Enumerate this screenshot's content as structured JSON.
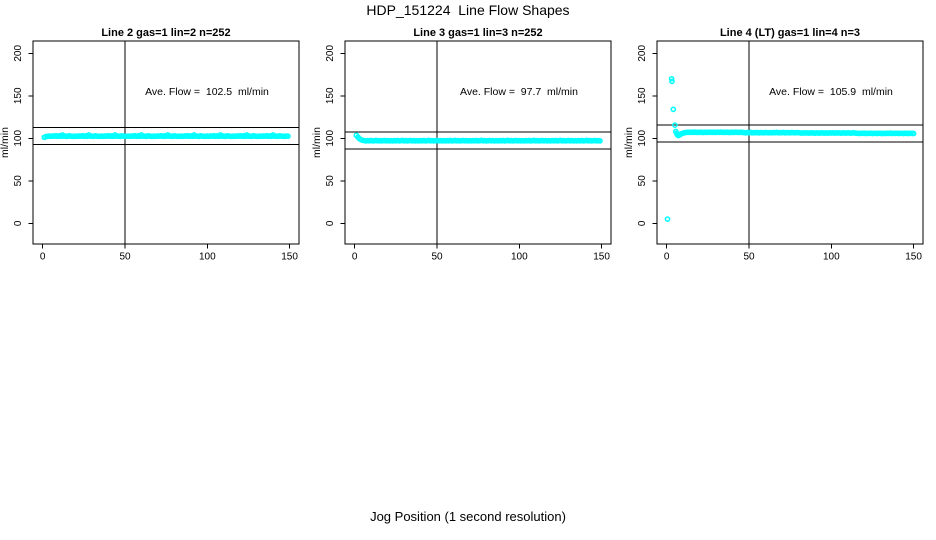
{
  "page": {
    "title": "HDP_151224  Line Flow Shapes",
    "xlabel": "Jog Position (1 second resolution)"
  },
  "chart_data": {
    "type": "scatter",
    "title": "HDP_151224  Line Flow Shapes",
    "xlabel": "Jog Position (1 second resolution)",
    "ylabel": "ml/min",
    "xlim": [
      0,
      150
    ],
    "ylim": [
      0,
      200
    ],
    "x_ticks": [
      0,
      50,
      100,
      150
    ],
    "y_ticks": [
      0,
      50,
      100,
      150,
      200
    ],
    "grid": false,
    "point_color": "#00ffff",
    "line_color": "#000000",
    "vline_x": 50,
    "panels": [
      {
        "title": "Line 2 gas=1 lin=2 n=252",
        "annotation": "Ave. Flow =  102.5  ml/min",
        "ave_flow": 102.5,
        "n": 252,
        "hlines": [
          92.5,
          112.5
        ],
        "series": {
          "x_start": 1,
          "x_step": 1,
          "y": [
            101.2,
            102.0,
            102.4,
            102.6,
            102.3,
            102.7,
            102.5,
            103.1,
            102.4,
            102.8,
            102.3,
            103.9,
            102.5,
            102.6,
            102.2,
            103.0,
            102.6,
            102.4,
            102.4,
            102.6,
            102.3,
            102.7,
            102.5,
            103.1,
            102.4,
            102.8,
            102.3,
            103.9,
            102.5,
            102.6,
            102.2,
            103.0,
            102.6,
            102.4,
            102.4,
            102.6,
            102.3,
            102.7,
            102.5,
            103.1,
            102.4,
            102.8,
            102.3,
            103.9,
            102.5,
            102.6,
            102.2,
            103.0,
            102.6,
            102.4,
            102.4,
            102.6,
            102.3,
            102.7,
            102.5,
            103.1,
            102.4,
            102.8,
            102.3,
            103.9,
            102.5,
            102.6,
            102.2,
            103.0,
            102.6,
            102.4,
            102.4,
            102.6,
            102.3,
            102.7,
            102.5,
            103.1,
            102.4,
            102.8,
            102.3,
            103.9,
            102.5,
            102.6,
            102.2,
            103.0,
            102.6,
            102.4,
            102.4,
            102.6,
            102.3,
            102.7,
            102.5,
            103.1,
            102.4,
            102.8,
            102.3,
            103.9,
            102.5,
            102.6,
            102.2,
            103.0,
            102.6,
            102.4,
            102.4,
            102.6,
            102.3,
            102.7,
            102.5,
            103.1,
            102.4,
            102.8,
            102.3,
            103.9,
            102.5,
            102.6,
            102.2,
            103.0,
            102.6,
            102.4,
            102.4,
            102.6,
            102.3,
            102.7,
            102.5,
            103.1,
            102.4,
            102.8,
            102.3,
            103.9,
            102.5,
            102.6,
            102.2,
            103.0,
            102.6,
            102.4,
            102.4,
            102.6,
            102.3,
            102.7,
            102.5,
            103.1,
            102.4,
            102.8,
            102.3,
            103.9,
            102.5,
            102.6,
            102.2,
            103.0,
            102.6,
            102.4,
            102.4,
            102.6,
            102.5
          ]
        },
        "extra_points": []
      },
      {
        "title": "Line 3 gas=1 lin=3 n=252",
        "annotation": "Ave. Flow =  97.7  ml/min",
        "ave_flow": 97.7,
        "n": 252,
        "hlines": [
          87.7,
          107.7
        ],
        "series": {
          "x_start": 1,
          "x_step": 1,
          "y": [
            103.5,
            101.3,
            99.4,
            98.2,
            97.7,
            97.2,
            97.0,
            97.3,
            97.1,
            97.4,
            97.0,
            97.2,
            97.5,
            97.1,
            97.3,
            96.9,
            97.2,
            97.4,
            97.1,
            97.3,
            97.0,
            97.2,
            97.0,
            97.3,
            97.1,
            97.4,
            97.0,
            97.2,
            97.5,
            97.1,
            97.3,
            96.9,
            97.2,
            97.4,
            97.1,
            97.3,
            97.0,
            97.2,
            97.0,
            97.3,
            97.1,
            97.4,
            97.0,
            97.2,
            97.5,
            97.1,
            97.3,
            96.9,
            97.2,
            97.4,
            97.1,
            97.3,
            97.0,
            97.2,
            97.0,
            97.3,
            97.1,
            97.4,
            97.0,
            97.2,
            97.5,
            97.1,
            97.3,
            96.9,
            97.2,
            97.4,
            97.1,
            97.3,
            97.0,
            97.2,
            97.0,
            97.3,
            97.1,
            97.4,
            97.0,
            97.2,
            97.5,
            97.1,
            97.3,
            96.9,
            97.2,
            97.4,
            97.1,
            97.3,
            97.0,
            97.2,
            97.0,
            97.3,
            97.1,
            97.4,
            97.0,
            97.2,
            97.5,
            97.1,
            97.3,
            96.9,
            97.2,
            97.4,
            97.1,
            97.3,
            97.0,
            97.2,
            97.0,
            97.3,
            97.1,
            97.4,
            97.0,
            97.2,
            97.5,
            97.1,
            97.3,
            96.9,
            97.2,
            97.4,
            97.1,
            97.3,
            97.0,
            97.2,
            97.0,
            97.3,
            97.1,
            97.4,
            97.0,
            97.2,
            97.5,
            97.1,
            97.3,
            96.9,
            97.2,
            97.4,
            97.1,
            97.3,
            97.0,
            97.2,
            97.0,
            97.3,
            97.1,
            97.4,
            97.0,
            97.2,
            97.5,
            97.1,
            97.3,
            96.9,
            97.2,
            97.4,
            97.1,
            97.3,
            97.0
          ]
        },
        "extra_points": []
      },
      {
        "title": "Line 4 (LT) gas=1 lin=4 n=3",
        "annotation": "Ave. Flow =  105.9  ml/min",
        "ave_flow": 105.9,
        "n": 3,
        "hlines": [
          95.9,
          115.9
        ],
        "series": {
          "x_start": 13,
          "x_step": 1,
          "y": [
            107.1,
            106.9,
            107.2,
            107.0,
            107.3,
            106.9,
            107.1,
            107.0,
            107.2,
            106.8,
            107.1,
            107.0,
            106.9,
            107.2,
            107.0,
            106.9,
            107.1,
            106.9,
            107.2,
            107.0,
            107.3,
            106.9,
            107.1,
            107.0,
            107.2,
            106.8,
            107.1,
            107.0,
            106.9,
            107.2,
            107.0,
            106.9,
            107.1,
            107.0,
            106.7,
            106.5,
            106.8,
            106.6,
            106.9,
            106.5,
            106.7,
            106.6,
            106.8,
            106.4,
            106.7,
            106.6,
            106.5,
            106.8,
            106.6,
            106.5,
            106.7,
            106.5,
            106.8,
            106.6,
            106.9,
            106.5,
            106.7,
            106.6,
            106.8,
            106.4,
            106.7,
            106.6,
            106.5,
            106.8,
            106.6,
            106.5,
            106.7,
            106.6,
            106.3,
            106.1,
            106.4,
            106.2,
            106.5,
            106.1,
            106.3,
            106.2,
            106.4,
            106.0,
            106.3,
            106.2,
            106.1,
            106.4,
            106.2,
            106.1,
            106.3,
            106.1,
            106.4,
            106.2,
            106.5,
            106.1,
            106.3,
            106.2,
            106.4,
            106.0,
            106.3,
            106.2,
            106.1,
            106.4,
            106.2,
            106.1,
            106.3,
            106.2,
            106.1,
            105.9,
            105.7,
            106.0,
            105.8,
            106.1,
            105.7,
            105.9,
            105.8,
            106.0,
            105.6,
            105.9,
            105.8,
            105.7,
            106.0,
            105.8,
            105.7,
            105.9,
            105.7,
            106.0,
            105.8,
            106.1,
            105.7,
            105.9,
            105.8,
            106.0,
            105.6,
            105.9,
            105.8,
            105.7,
            106.0,
            105.8,
            105.7,
            105.9,
            105.8,
            105.7
          ]
        },
        "extra_points": [
          [
            0.5,
            5
          ],
          [
            3,
            170
          ],
          [
            3.2,
            167
          ],
          [
            4,
            134
          ],
          [
            5,
            115.5
          ],
          [
            5.5,
            108
          ],
          [
            6,
            105.8
          ],
          [
            6.5,
            104.2
          ],
          [
            7,
            103.3
          ],
          [
            7.5,
            103.6
          ],
          [
            8,
            104.3
          ],
          [
            8.5,
            104.8
          ],
          [
            9,
            105.4
          ],
          [
            10,
            106.1
          ],
          [
            11,
            106.6
          ],
          [
            12,
            107.0
          ]
        ]
      }
    ]
  }
}
